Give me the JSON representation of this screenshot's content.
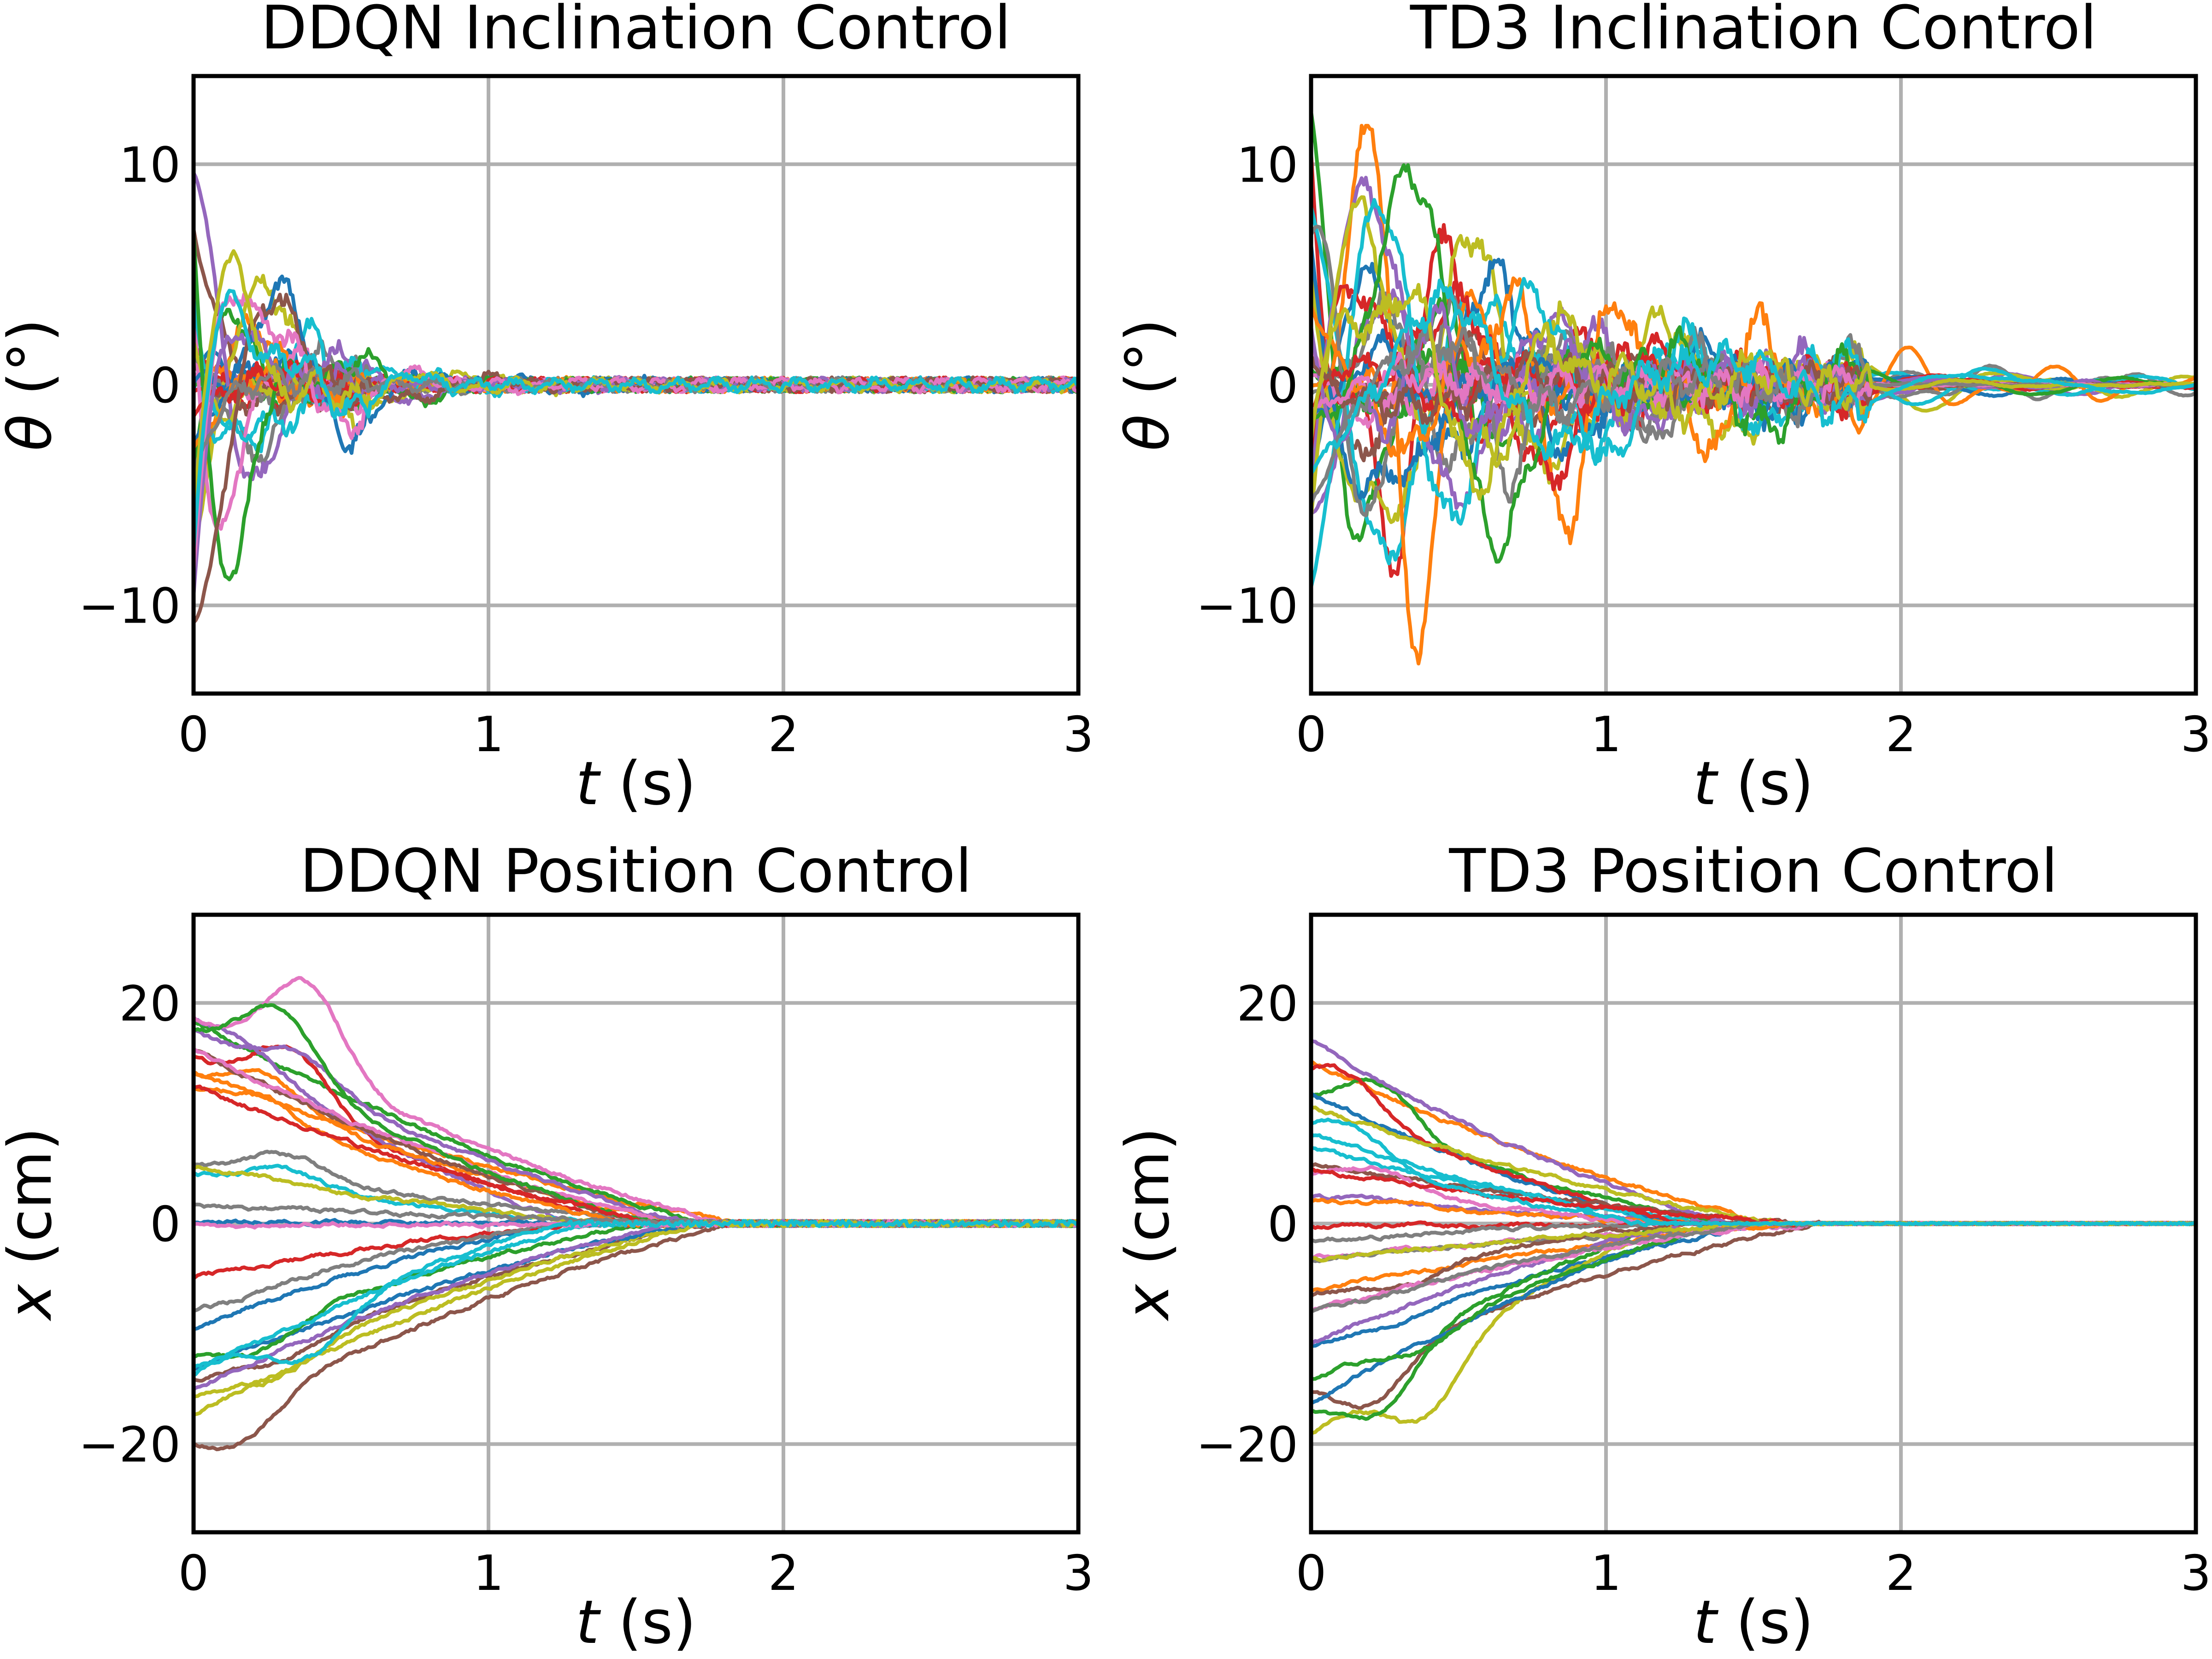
{
  "chart_data": [
    {
      "id": "ddqn-inclination",
      "type": "line",
      "title": "DDQN Inclination Control",
      "xlabel_var": "t",
      "xlabel_unit": " (s)",
      "ylabel_var": "θ",
      "ylabel_unit": " (°)",
      "xlim": [
        0,
        3
      ],
      "ylim": [
        -14,
        14
      ],
      "xticks": [
        0,
        1,
        2,
        3
      ],
      "xtick_labels": [
        "0",
        "1",
        "2",
        "3"
      ],
      "yticks": [
        -10,
        0,
        10
      ],
      "ytick_labels": [
        "−10",
        "0",
        "10"
      ],
      "grid": true,
      "series_profile": {
        "count": 30,
        "kind": "inclination",
        "seed": 11,
        "initial": [
          -12,
          13
        ],
        "settle_time": 0.6,
        "steady_noise": 0.9,
        "late_noise": 0.35
      }
    },
    {
      "id": "td3-inclination",
      "type": "line",
      "title": "TD3 Inclination Control",
      "xlabel_var": "t",
      "xlabel_unit": " (s)",
      "ylabel_var": "θ",
      "ylabel_unit": " (°)",
      "xlim": [
        0,
        3
      ],
      "ylim": [
        -14,
        14
      ],
      "xticks": [
        0,
        1,
        2,
        3
      ],
      "xtick_labels": [
        "0",
        "1",
        "2",
        "3"
      ],
      "yticks": [
        -10,
        0,
        10
      ],
      "ytick_labels": [
        "−10",
        "0",
        "10"
      ],
      "grid": true,
      "series_profile": {
        "count": 30,
        "kind": "inclination",
        "seed": 23,
        "initial": [
          -13,
          13
        ],
        "settle_time": 1.9,
        "steady_noise": 1.1,
        "late_noise": 0.05
      }
    },
    {
      "id": "ddqn-position",
      "type": "line",
      "title": "DDQN Position Control",
      "xlabel_var": "t",
      "xlabel_unit": " (s)",
      "ylabel_var": "x",
      "ylabel_unit": " (cm)",
      "xlim": [
        0,
        3
      ],
      "ylim": [
        -28,
        28
      ],
      "xticks": [
        0,
        1,
        2,
        3
      ],
      "xtick_labels": [
        "0",
        "1",
        "2",
        "3"
      ],
      "yticks": [
        -20,
        0,
        20
      ],
      "ytick_labels": [
        "−20",
        "0",
        "20"
      ],
      "grid": true,
      "series_profile": {
        "count": 30,
        "kind": "position",
        "seed": 37,
        "initial": [
          -19,
          19
        ],
        "peak": [
          -19,
          22
        ],
        "settle_time": 1.75,
        "steady_noise": 0.25
      }
    },
    {
      "id": "td3-position",
      "type": "line",
      "title": "TD3 Position Control",
      "xlabel_var": "t",
      "xlabel_unit": " (s)",
      "ylabel_var": "x",
      "ylabel_unit": " (cm)",
      "xlim": [
        0,
        3
      ],
      "ylim": [
        -28,
        28
      ],
      "xticks": [
        0,
        1,
        2,
        3
      ],
      "xtick_labels": [
        "0",
        "1",
        "2",
        "3"
      ],
      "yticks": [
        -20,
        0,
        20
      ],
      "ytick_labels": [
        "−20",
        "0",
        "20"
      ],
      "grid": true,
      "series_profile": {
        "count": 30,
        "kind": "position",
        "seed": 53,
        "initial": [
          -21,
          18
        ],
        "peak": [
          -25,
          15
        ],
        "settle_time": 1.6,
        "steady_noise": 0.08
      }
    }
  ],
  "palette": [
    "#1f77b4",
    "#ff7f0e",
    "#2ca02c",
    "#d62728",
    "#9467bd",
    "#8c564b",
    "#e377c2",
    "#7f7f7f",
    "#bcbd22",
    "#17becf"
  ]
}
